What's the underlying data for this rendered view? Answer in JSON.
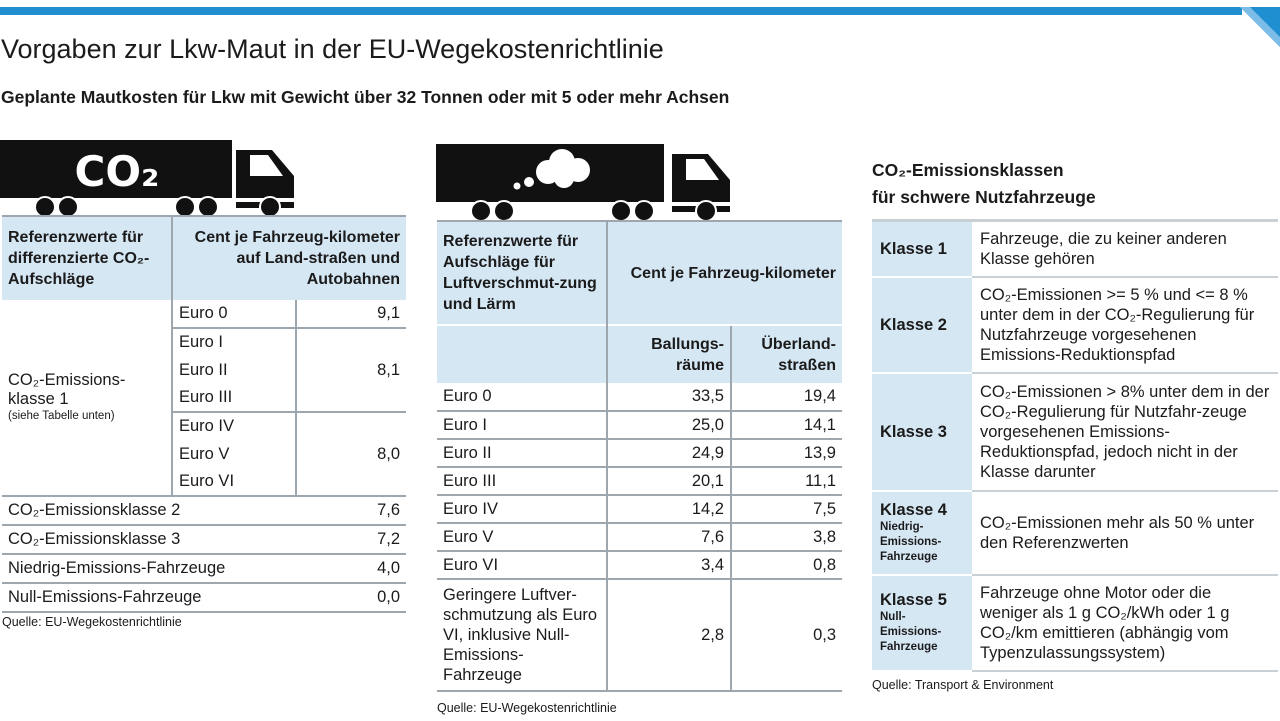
{
  "title": "Vorgaben zur Lkw-Maut in der EU-Wegekostenrichtlinie",
  "subtitle": "Geplante Mautkosten für Lkw mit Gewicht über 32 Tonnen oder mit 5 oder mehr Achsen",
  "colors": {
    "accent": "#1f8fd1",
    "header_bg": "#d6e7f4",
    "text": "#1b1b1b"
  },
  "table1": {
    "truck_label": "CO₂",
    "header_left": "Referenzwerte für differenzierte CO₂-Aufschläge",
    "header_right": "Cent je Fahrzeug-kilometer auf Land-straßen und Autobahnen",
    "group_label": "CO₂-Emissions-klasse 1",
    "group_note": "(siehe Tabelle unten)",
    "euro": [
      "Euro 0",
      "Euro I",
      "Euro II",
      "Euro III",
      "Euro IV",
      "Euro V",
      "Euro VI"
    ],
    "values": [
      "9,1",
      "8,1",
      "8,0"
    ],
    "rows": [
      {
        "label": "CO₂-Emissionsklasse 2",
        "value": "7,6"
      },
      {
        "label": "CO₂-Emissionsklasse 3",
        "value": "7,2"
      },
      {
        "label": "Niedrig-Emissions-Fahrzeuge",
        "value": "4,0"
      },
      {
        "label": "Null-Emissions-Fahrzeuge",
        "value": "0,0"
      }
    ],
    "source": "Quelle: EU-Wegekostenrichtlinie"
  },
  "table2": {
    "header_left": "Referenzwerte für Aufschläge für Luftverschmut-zung und Lärm",
    "header_right": "Cent je Fahrzeug-kilometer",
    "col1": "Ballungs-räume",
    "col2": "Überland-straßen",
    "rows": [
      {
        "label": "Euro 0",
        "v1": "33,5",
        "v2": "19,4"
      },
      {
        "label": "Euro I",
        "v1": "25,0",
        "v2": "14,1"
      },
      {
        "label": "Euro II",
        "v1": "24,9",
        "v2": "13,9"
      },
      {
        "label": "Euro III",
        "v1": "20,1",
        "v2": "11,1"
      },
      {
        "label": "Euro IV",
        "v1": "14,2",
        "v2": "7,5"
      },
      {
        "label": "Euro V",
        "v1": "7,6",
        "v2": "3,8"
      },
      {
        "label": "Euro VI",
        "v1": "3,4",
        "v2": "0,8"
      },
      {
        "label": "Geringere Luftver-schmutzung als Euro VI, inklusive Null-Emissions-Fahrzeuge",
        "v1": "2,8",
        "v2": "0,3"
      }
    ],
    "source": "Quelle: EU-Wegekostenrichtlinie"
  },
  "table3": {
    "title_line1": "CO₂-Emissionsklassen",
    "title_line2": "für schwere Nutzfahrzeuge",
    "rows": [
      {
        "name": "Klasse 1",
        "sub": "",
        "desc": "Fahrzeuge, die zu keiner anderen Klasse gehören"
      },
      {
        "name": "Klasse 2",
        "sub": "",
        "desc": "CO₂-Emissionen >= 5 % und <= 8 % unter dem in der CO₂-Regulierung für Nutzfahrzeuge vorgesehenen Emissions-Reduktionspfad"
      },
      {
        "name": "Klasse 3",
        "sub": "",
        "desc": "CO₂-Emissionen > 8% unter dem in der CO₂-Regulierung für Nutzfahr-zeuge vorgesehenen Emissions-Reduktionspfad, jedoch nicht in der Klasse darunter"
      },
      {
        "name": "Klasse 4",
        "sub": "Niedrig-Emissions-Fahrzeuge",
        "desc": "CO₂-Emissionen mehr als 50 % unter den Referenzwerten"
      },
      {
        "name": "Klasse 5",
        "sub": "Null-Emissions-Fahrzeuge",
        "desc": "Fahrzeuge ohne Motor oder die weniger als 1 g CO₂/kWh oder 1 g CO₂/km emittieren (abhängig vom Typenzulassungssystem)"
      }
    ],
    "source": "Quelle: Transport & Environment"
  }
}
